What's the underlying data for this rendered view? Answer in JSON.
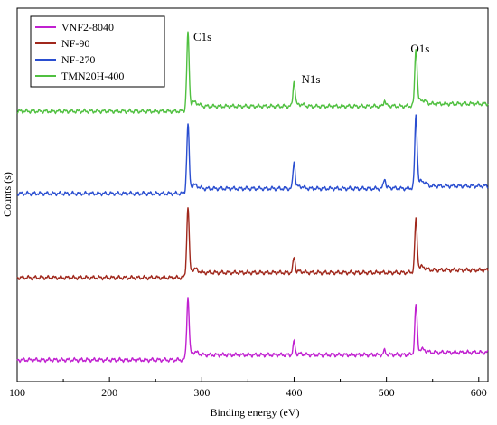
{
  "chart_data": {
    "type": "line",
    "xlabel": "Binding energy (eV)",
    "ylabel": "Counts (s)",
    "xlim": [
      100,
      610
    ],
    "x_ticks": [
      100,
      200,
      300,
      400,
      500,
      600
    ],
    "y_ticks_shown": false,
    "grid": false,
    "legend_position": "top-left",
    "annotations": [
      {
        "text": "C1s",
        "x": 285
      },
      {
        "text": "N1s",
        "x": 400
      },
      {
        "text": "O1s",
        "x": 532
      }
    ],
    "series": [
      {
        "name": "VNF2-8040",
        "color": "#c020d0",
        "baseline": 0.0,
        "peaks": [
          {
            "x": 285,
            "h": 0.72,
            "w": 1.8
          },
          {
            "x": 400,
            "h": 0.15,
            "w": 1.6
          },
          {
            "x": 498,
            "h": 0.05,
            "w": 1.6
          },
          {
            "x": 532,
            "h": 0.58,
            "w": 1.8
          }
        ]
      },
      {
        "name": "NF-90",
        "color": "#a0281c",
        "baseline": 1.0,
        "peaks": [
          {
            "x": 285,
            "h": 0.82,
            "w": 1.8
          },
          {
            "x": 400,
            "h": 0.18,
            "w": 1.6
          },
          {
            "x": 532,
            "h": 0.62,
            "w": 1.8
          }
        ]
      },
      {
        "name": "NF-270",
        "color": "#2a4ed0",
        "baseline": 2.0,
        "peaks": [
          {
            "x": 285,
            "h": 0.8,
            "w": 1.8
          },
          {
            "x": 400,
            "h": 0.32,
            "w": 1.6
          },
          {
            "x": 498,
            "h": 0.12,
            "w": 1.6
          },
          {
            "x": 532,
            "h": 0.85,
            "w": 1.8
          }
        ]
      },
      {
        "name": "TMN20H-400",
        "color": "#50c040",
        "baseline": 3.0,
        "peaks": [
          {
            "x": 285,
            "h": 0.9,
            "w": 1.8
          },
          {
            "x": 400,
            "h": 0.3,
            "w": 1.6
          },
          {
            "x": 498,
            "h": 0.07,
            "w": 1.6
          },
          {
            "x": 532,
            "h": 0.68,
            "w": 1.8
          }
        ]
      }
    ]
  }
}
